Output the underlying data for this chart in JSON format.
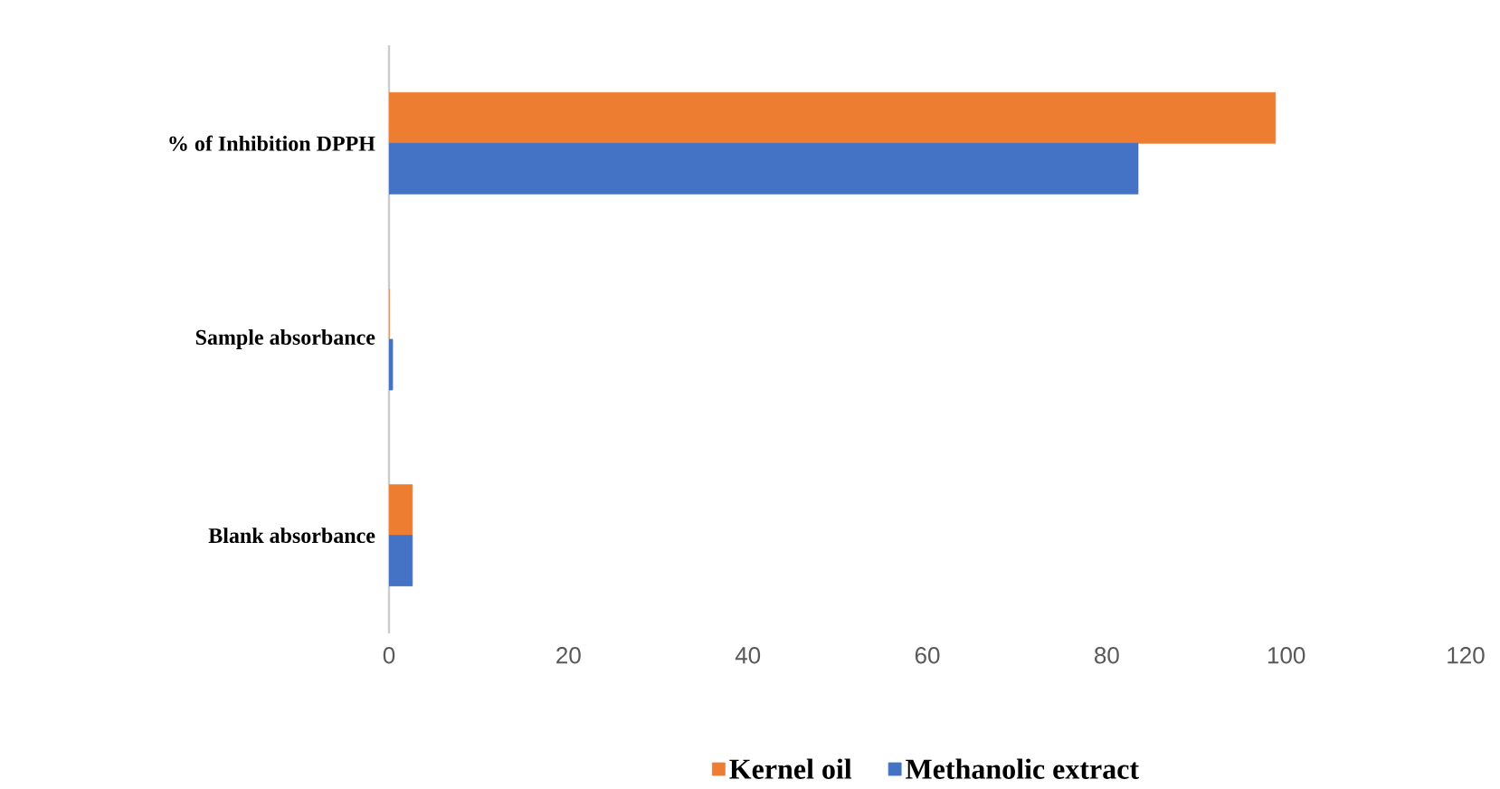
{
  "chart_data": {
    "type": "bar",
    "orientation": "horizontal",
    "categories": [
      "% of Inhibition DPPH",
      "Sample absorbance",
      "Blank absorbance"
    ],
    "series": [
      {
        "name": "Kernel oil",
        "color": "#ed7d31",
        "values": [
          98.8,
          0,
          2.6
        ]
      },
      {
        "name": "Methanolic extract",
        "color": "#4472c4",
        "values": [
          83.5,
          0.4,
          2.6
        ]
      }
    ],
    "xlim": [
      0,
      120
    ],
    "xticks": [
      0,
      20,
      40,
      60,
      80,
      100,
      120
    ],
    "grid": false,
    "legend": "bottom"
  }
}
